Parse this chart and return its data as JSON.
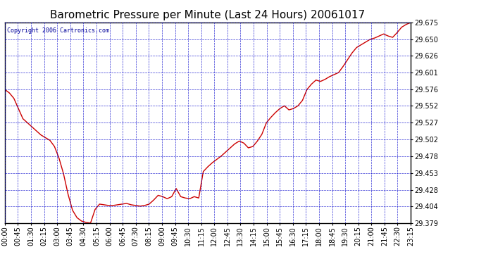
{
  "title": "Barometric Pressure per Minute (Last 24 Hours) 20061017",
  "copyright": "Copyright 2006 Cartronics.com",
  "line_color": "#cc0000",
  "bg_color": "#ffffff",
  "plot_bg_color": "#ffffff",
  "grid_color": "#0000cc",
  "axis_color": "#000000",
  "text_color": "#000000",
  "yticks": [
    29.379,
    29.404,
    29.428,
    29.453,
    29.478,
    29.502,
    29.527,
    29.552,
    29.576,
    29.601,
    29.626,
    29.65,
    29.675
  ],
  "ylim": [
    29.379,
    29.675
  ],
  "xtick_labels": [
    "00:00",
    "00:45",
    "01:30",
    "02:15",
    "03:00",
    "03:45",
    "04:30",
    "05:15",
    "06:00",
    "06:45",
    "07:30",
    "08:15",
    "09:00",
    "09:45",
    "10:30",
    "11:15",
    "12:00",
    "12:45",
    "13:30",
    "14:15",
    "15:00",
    "15:45",
    "16:30",
    "17:15",
    "18:00",
    "18:45",
    "19:30",
    "20:15",
    "21:00",
    "21:45",
    "22:30",
    "23:15"
  ],
  "data_y": [
    29.576,
    29.571,
    29.563,
    29.548,
    29.533,
    29.527,
    29.521,
    29.515,
    29.509,
    29.505,
    29.501,
    29.492,
    29.475,
    29.452,
    29.422,
    29.398,
    29.387,
    29.382,
    29.38,
    29.379,
    29.399,
    29.407,
    29.406,
    29.405,
    29.405,
    29.406,
    29.407,
    29.408,
    29.406,
    29.405,
    29.404,
    29.405,
    29.407,
    29.413,
    29.42,
    29.418,
    29.415,
    29.418,
    29.43,
    29.418,
    29.416,
    29.415,
    29.418,
    29.416,
    29.455,
    29.462,
    29.468,
    29.473,
    29.478,
    29.484,
    29.49,
    29.496,
    29.5,
    29.497,
    29.49,
    29.492,
    29.5,
    29.51,
    29.527,
    29.535,
    29.542,
    29.548,
    29.552,
    29.546,
    29.548,
    29.552,
    29.56,
    29.576,
    29.584,
    29.59,
    29.588,
    29.591,
    29.595,
    29.598,
    29.601,
    29.61,
    29.62,
    29.63,
    29.638,
    29.642,
    29.646,
    29.65,
    29.652,
    29.655,
    29.658,
    29.655,
    29.653,
    29.66,
    29.668,
    29.672,
    29.675
  ],
  "title_fontsize": 11,
  "copyright_fontsize": 6,
  "tick_fontsize": 7,
  "ytick_fontsize": 7
}
